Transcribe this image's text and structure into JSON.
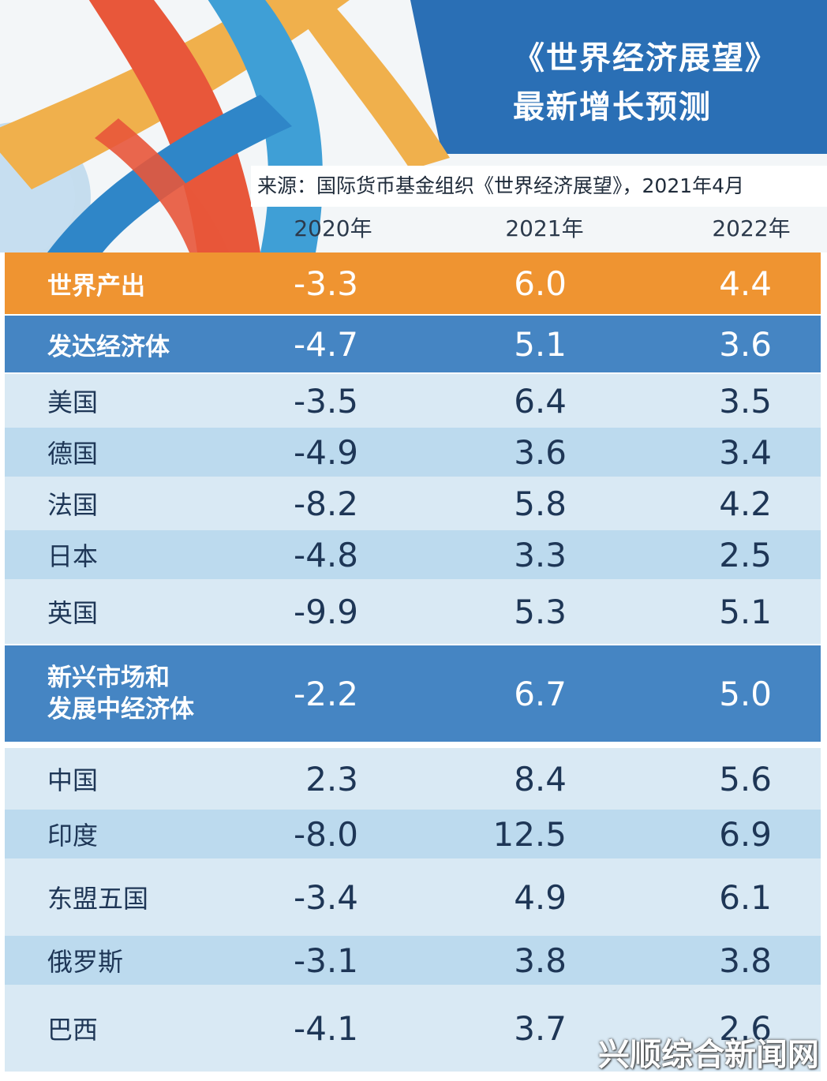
{
  "header": {
    "title_line1": "《世界经济展望》",
    "title_line2": "最新增长预测",
    "source": "来源：国际货币基金组织《世界经济展望》，2021年4月"
  },
  "chart_data": {
    "type": "table",
    "title": "《世界经济展望》最新增长预测",
    "columns": [
      "2020年",
      "2021年",
      "2022年"
    ],
    "rows": [
      {
        "label": "世界产出",
        "values": [
          "-3.3",
          "6.0",
          "4.4"
        ],
        "style": "orange"
      },
      {
        "label": "发达经济体",
        "values": [
          "-4.7",
          "5.1",
          "3.6"
        ],
        "style": "dark"
      },
      {
        "label": "美国",
        "values": [
          "-3.5",
          "6.4",
          "3.5"
        ],
        "style": "light"
      },
      {
        "label": "德国",
        "values": [
          "-4.9",
          "3.6",
          "3.4"
        ],
        "style": "mid"
      },
      {
        "label": "法国",
        "values": [
          "-8.2",
          "5.8",
          "4.2"
        ],
        "style": "light"
      },
      {
        "label": "日本",
        "values": [
          "-4.8",
          "3.3",
          "2.5"
        ],
        "style": "mid"
      },
      {
        "label": "英国",
        "values": [
          "-9.9",
          "5.3",
          "5.1"
        ],
        "style": "light"
      },
      {
        "label": "新兴市场和发展中经济体",
        "values": [
          "-2.2",
          "6.7",
          "5.0"
        ],
        "style": "dark"
      },
      {
        "label": "中国",
        "values": [
          "2.3",
          "8.4",
          "5.6"
        ],
        "style": "light"
      },
      {
        "label": "印度",
        "values": [
          "-8.0",
          "12.5",
          "6.9"
        ],
        "style": "mid"
      },
      {
        "label": "东盟五国",
        "values": [
          "-3.4",
          "4.9",
          "6.1"
        ],
        "style": "light"
      },
      {
        "label": "俄罗斯",
        "values": [
          "-3.1",
          "3.8",
          "3.8"
        ],
        "style": "mid"
      },
      {
        "label": "巴西",
        "values": [
          "-4.1",
          "3.7",
          "2.6"
        ],
        "style": "light"
      }
    ]
  },
  "colors": {
    "title_band": "#2a6fb5",
    "orange_row": "#ef9431",
    "dark_row": "#4585c3",
    "light_row": "#d9e9f4",
    "mid_row": "#bcdaee"
  },
  "watermark": "兴顺综合新闻网"
}
